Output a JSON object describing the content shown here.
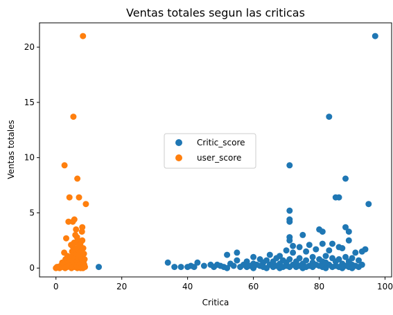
{
  "chart_data": {
    "type": "scatter",
    "title": "Ventas totales segun las criticas",
    "xlabel": "Critica",
    "ylabel": "Ventas totales",
    "xlim": [
      -5,
      102
    ],
    "ylim": [
      -0.8,
      22.2
    ],
    "x_ticks": [
      0,
      20,
      40,
      60,
      80,
      100
    ],
    "y_ticks": [
      0,
      5,
      10,
      15,
      20
    ],
    "legend_position": "center",
    "series": [
      {
        "name": "Critic_score",
        "color": "#1f77b4",
        "points": [
          [
            97,
            21.0
          ],
          [
            83,
            13.7
          ],
          [
            71,
            9.3
          ],
          [
            88,
            8.1
          ],
          [
            85,
            6.4
          ],
          [
            86,
            6.4
          ],
          [
            95,
            5.8
          ],
          [
            71,
            5.2
          ],
          [
            71,
            4.4
          ],
          [
            71,
            4.2
          ],
          [
            88,
            3.7
          ],
          [
            80,
            3.5
          ],
          [
            81,
            3.3
          ],
          [
            89,
            3.3
          ],
          [
            75,
            3.0
          ],
          [
            71,
            2.8
          ],
          [
            71,
            2.5
          ],
          [
            89,
            2.5
          ],
          [
            81,
            2.2
          ],
          [
            84,
            2.2
          ],
          [
            77,
            2.1
          ],
          [
            72,
            2.0
          ],
          [
            74,
            1.9
          ],
          [
            86,
            1.9
          ],
          [
            87,
            1.8
          ],
          [
            94,
            1.7
          ],
          [
            79,
            1.7
          ],
          [
            70,
            1.6
          ],
          [
            83,
            1.6
          ],
          [
            93,
            1.5
          ],
          [
            76,
            1.5
          ],
          [
            55,
            1.4
          ],
          [
            72,
            1.4
          ],
          [
            91,
            1.4
          ],
          [
            52,
            1.2
          ],
          [
            65,
            1.2
          ],
          [
            68,
            1.1
          ],
          [
            82,
            1.1
          ],
          [
            60,
            1.0
          ],
          [
            78,
            1.0
          ],
          [
            88,
            1.0
          ],
          [
            74,
            0.9
          ],
          [
            84,
            0.9
          ],
          [
            67,
            0.9
          ],
          [
            90,
            0.9
          ],
          [
            80,
            0.8
          ],
          [
            62,
            0.8
          ],
          [
            71,
            0.8
          ],
          [
            86,
            0.8
          ],
          [
            55,
            0.7
          ],
          [
            69,
            0.7
          ],
          [
            76,
            0.7
          ],
          [
            92,
            0.7
          ],
          [
            64,
            0.7
          ],
          [
            81,
            0.6
          ],
          [
            58,
            0.6
          ],
          [
            73,
            0.6
          ],
          [
            66,
            0.6
          ],
          [
            85,
            0.6
          ],
          [
            89,
            0.6
          ],
          [
            34,
            0.5
          ],
          [
            43,
            0.5
          ],
          [
            70,
            0.5
          ],
          [
            78,
            0.5
          ],
          [
            63,
            0.5
          ],
          [
            82,
            0.5
          ],
          [
            60,
            0.4
          ],
          [
            68,
            0.4
          ],
          [
            75,
            0.4
          ],
          [
            87,
            0.4
          ],
          [
            53,
            0.4
          ],
          [
            47,
            0.3
          ],
          [
            57,
            0.3
          ],
          [
            65,
            0.3
          ],
          [
            72,
            0.3
          ],
          [
            79,
            0.3
          ],
          [
            83,
            0.3
          ],
          [
            90,
            0.3
          ],
          [
            93,
            0.3
          ],
          [
            49,
            0.3
          ],
          [
            61,
            0.3
          ],
          [
            41,
            0.2
          ],
          [
            45,
            0.2
          ],
          [
            50,
            0.2
          ],
          [
            54,
            0.2
          ],
          [
            59,
            0.2
          ],
          [
            62,
            0.2
          ],
          [
            67,
            0.2
          ],
          [
            70,
            0.2
          ],
          [
            74,
            0.2
          ],
          [
            77,
            0.2
          ],
          [
            80,
            0.2
          ],
          [
            85,
            0.2
          ],
          [
            88,
            0.2
          ],
          [
            91,
            0.2
          ],
          [
            13,
            0.1
          ],
          [
            36,
            0.1
          ],
          [
            38,
            0.1
          ],
          [
            40,
            0.1
          ],
          [
            42,
            0.1
          ],
          [
            48,
            0.1
          ],
          [
            51,
            0.1
          ],
          [
            56,
            0.1
          ],
          [
            58,
            0.1
          ],
          [
            63,
            0.1
          ],
          [
            66,
            0.1
          ],
          [
            69,
            0.1
          ],
          [
            71,
            0.1
          ],
          [
            73,
            0.1
          ],
          [
            76,
            0.1
          ],
          [
            78,
            0.1
          ],
          [
            81,
            0.1
          ],
          [
            84,
            0.1
          ],
          [
            86,
            0.1
          ],
          [
            89,
            0.1
          ],
          [
            92,
            0.1
          ],
          [
            52,
            0.0
          ],
          [
            60,
            0.0
          ],
          [
            64,
            0.0
          ],
          [
            68,
            0.0
          ],
          [
            75,
            0.0
          ],
          [
            82,
            0.0
          ],
          [
            87,
            0.0
          ],
          [
            90,
            0.0
          ]
        ]
      },
      {
        "name": "user_score",
        "color": "#ff7f0e",
        "points": [
          [
            8.2,
            21.0
          ],
          [
            5.3,
            13.7
          ],
          [
            2.6,
            9.3
          ],
          [
            6.5,
            8.1
          ],
          [
            4.1,
            6.4
          ],
          [
            7.0,
            6.4
          ],
          [
            9.1,
            5.8
          ],
          [
            5.6,
            4.4
          ],
          [
            5.1,
            4.2
          ],
          [
            3.8,
            4.2
          ],
          [
            8.0,
            3.7
          ],
          [
            6.1,
            3.5
          ],
          [
            7.9,
            3.3
          ],
          [
            5.9,
            3.0
          ],
          [
            6.4,
            2.8
          ],
          [
            3.1,
            2.7
          ],
          [
            8.0,
            2.5
          ],
          [
            6.6,
            2.5
          ],
          [
            5.5,
            2.3
          ],
          [
            7.4,
            2.2
          ],
          [
            4.6,
            2.1
          ],
          [
            6.9,
            2.0
          ],
          [
            5.2,
            1.9
          ],
          [
            8.3,
            1.8
          ],
          [
            6.2,
            1.7
          ],
          [
            7.7,
            1.6
          ],
          [
            4.9,
            1.5
          ],
          [
            2.5,
            1.4
          ],
          [
            7.1,
            1.4
          ],
          [
            8.5,
            1.3
          ],
          [
            5.7,
            1.2
          ],
          [
            6.8,
            1.1
          ],
          [
            3.5,
            1.1
          ],
          [
            8.1,
            1.0
          ],
          [
            4.3,
            1.0
          ],
          [
            7.3,
            0.9
          ],
          [
            6.0,
            0.9
          ],
          [
            2.9,
            0.8
          ],
          [
            5.4,
            0.8
          ],
          [
            8.7,
            0.8
          ],
          [
            3.7,
            0.7
          ],
          [
            7.6,
            0.7
          ],
          [
            4.5,
            0.6
          ],
          [
            6.3,
            0.6
          ],
          [
            8.4,
            0.6
          ],
          [
            1.9,
            0.5
          ],
          [
            5.8,
            0.5
          ],
          [
            7.0,
            0.5
          ],
          [
            3.3,
            0.4
          ],
          [
            4.8,
            0.4
          ],
          [
            6.7,
            0.4
          ],
          [
            8.0,
            0.4
          ],
          [
            2.2,
            0.3
          ],
          [
            3.9,
            0.3
          ],
          [
            5.0,
            0.3
          ],
          [
            7.2,
            0.3
          ],
          [
            8.6,
            0.3
          ],
          [
            1.4,
            0.2
          ],
          [
            4.0,
            0.2
          ],
          [
            6.1,
            0.2
          ],
          [
            7.8,
            0.2
          ],
          [
            0.6,
            0.1
          ],
          [
            2.0,
            0.1
          ],
          [
            3.4,
            0.1
          ],
          [
            5.6,
            0.1
          ],
          [
            6.9,
            0.1
          ],
          [
            8.8,
            0.1
          ],
          [
            0.0,
            0.0
          ],
          [
            0.3,
            0.1
          ],
          [
            1.1,
            0.0
          ],
          [
            2.8,
            0.0
          ],
          [
            4.7,
            0.0
          ],
          [
            6.5,
            0.0
          ],
          [
            7.5,
            0.0
          ],
          [
            8.2,
            0.0
          ]
        ]
      }
    ]
  }
}
